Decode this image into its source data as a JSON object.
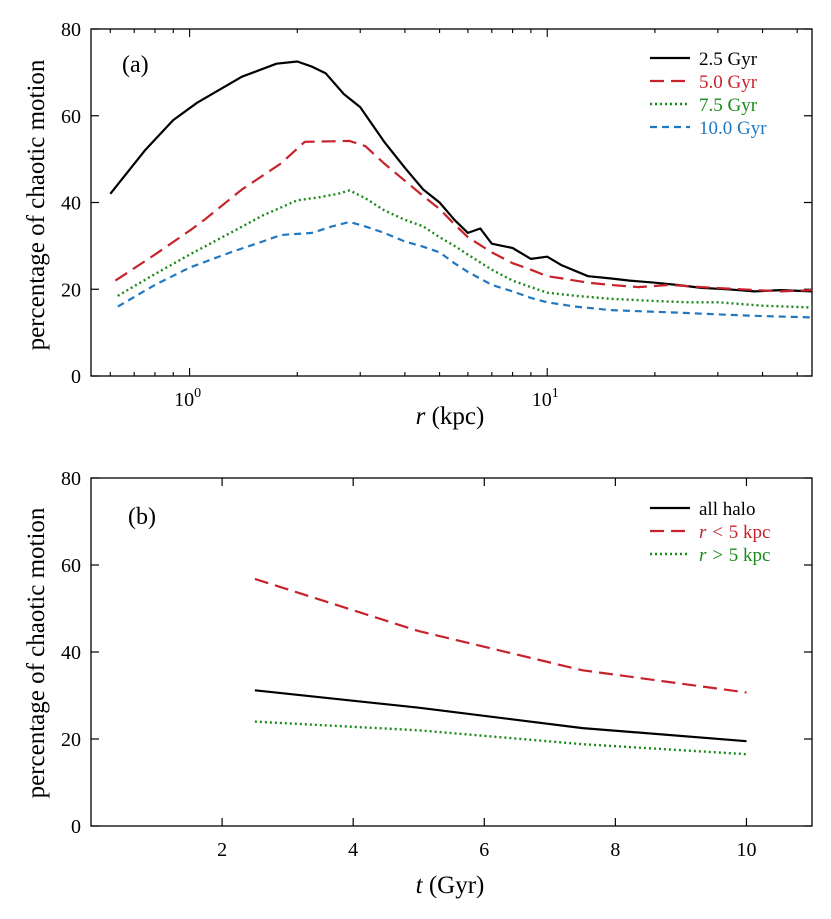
{
  "chart_data": [
    {
      "panel": "(a)",
      "type": "line",
      "x_scale": "log",
      "xlabel_var": "r",
      "xlabel_unit": "(kpc)",
      "ylabel": "percentage of chaotic motion",
      "xlim": [
        0.53,
        55
      ],
      "ylim": [
        0,
        80
      ],
      "y_ticks": [
        0,
        20,
        40,
        60,
        80
      ],
      "x_ticks": [
        {
          "value": 1,
          "base": "10",
          "exp": "0"
        },
        {
          "value": 10,
          "base": "10",
          "exp": "1"
        }
      ],
      "legend_position": "top-right",
      "series": [
        {
          "name": "2.5 Gyr",
          "color": "#000000",
          "dash": "solid",
          "points": [
            [
              0.6,
              42
            ],
            [
              0.75,
              52
            ],
            [
              0.9,
              59
            ],
            [
              1.05,
              63
            ],
            [
              1.4,
              69
            ],
            [
              1.75,
              72
            ],
            [
              2.0,
              72.5
            ],
            [
              2.2,
              71.3
            ],
            [
              2.4,
              69.8
            ],
            [
              2.7,
              65
            ],
            [
              3.0,
              62
            ],
            [
              3.5,
              54
            ],
            [
              4.0,
              48
            ],
            [
              4.5,
              43
            ],
            [
              5.0,
              40
            ],
            [
              5.5,
              36
            ],
            [
              6.0,
              33
            ],
            [
              6.5,
              34
            ],
            [
              7.0,
              30.5
            ],
            [
              7.5,
              30
            ],
            [
              8.0,
              29.5
            ],
            [
              9.0,
              27
            ],
            [
              10.0,
              27.5
            ],
            [
              11,
              25.5
            ],
            [
              13,
              23
            ],
            [
              15,
              22.5
            ],
            [
              17,
              22
            ],
            [
              20,
              21.5
            ],
            [
              23,
              21
            ],
            [
              27,
              20.3
            ],
            [
              32,
              20
            ],
            [
              38,
              19.5
            ],
            [
              45,
              19.8
            ],
            [
              55,
              19.5
            ]
          ]
        },
        {
          "name": "5.0 Gyr",
          "color": "#c8232c",
          "dash": "14,7",
          "points": [
            [
              0.62,
              22
            ],
            [
              0.8,
              28
            ],
            [
              1.0,
              33.5
            ],
            [
              1.1,
              36
            ],
            [
              1.4,
              43
            ],
            [
              1.8,
              49
            ],
            [
              2.1,
              54
            ],
            [
              2.5,
              54.1
            ],
            [
              2.8,
              54.2
            ],
            [
              3.1,
              53
            ],
            [
              3.5,
              49
            ],
            [
              4.0,
              45
            ],
            [
              4.5,
              41.5
            ],
            [
              5.0,
              38.5
            ],
            [
              5.5,
              35
            ],
            [
              6.0,
              32
            ],
            [
              7.0,
              28.5
            ],
            [
              8.0,
              26
            ],
            [
              9.0,
              24.5
            ],
            [
              10.0,
              23
            ],
            [
              11,
              22.5
            ],
            [
              13,
              21.5
            ],
            [
              15,
              21
            ],
            [
              18,
              20.5
            ],
            [
              22,
              21
            ],
            [
              27,
              20.5
            ],
            [
              35,
              20
            ],
            [
              45,
              19.5
            ],
            [
              55,
              19.8
            ]
          ]
        },
        {
          "name": "7.5 Gyr",
          "color": "#1a8a18",
          "dash": "2,3",
          "points": [
            [
              0.63,
              18.5
            ],
            [
              0.8,
              23.5
            ],
            [
              1.0,
              28
            ],
            [
              1.3,
              33
            ],
            [
              1.6,
              37
            ],
            [
              2.0,
              40.5
            ],
            [
              2.3,
              41.2
            ],
            [
              2.6,
              42
            ],
            [
              2.8,
              42.8
            ],
            [
              3.1,
              41
            ],
            [
              3.5,
              38.2
            ],
            [
              4.0,
              36
            ],
            [
              4.5,
              34.5
            ],
            [
              5.0,
              32
            ],
            [
              5.5,
              30
            ],
            [
              6.0,
              28
            ],
            [
              7.0,
              24.5
            ],
            [
              8.0,
              22
            ],
            [
              9.0,
              20.5
            ],
            [
              10.0,
              19.2
            ],
            [
              12,
              18.5
            ],
            [
              15,
              17.8
            ],
            [
              20,
              17.3
            ],
            [
              25,
              17
            ],
            [
              30,
              17
            ],
            [
              40,
              16.2
            ],
            [
              55,
              15.8
            ]
          ]
        },
        {
          "name": "10.0 Gyr",
          "color": "#1f78c1",
          "dash": "7,5",
          "points": [
            [
              0.63,
              16
            ],
            [
              0.8,
              21
            ],
            [
              1.0,
              25
            ],
            [
              1.3,
              28.5
            ],
            [
              1.6,
              31
            ],
            [
              1.8,
              32.5
            ],
            [
              2.2,
              33
            ],
            [
              2.5,
              34.5
            ],
            [
              2.8,
              35.5
            ],
            [
              3.1,
              34.5
            ],
            [
              3.5,
              33
            ],
            [
              4.0,
              31
            ],
            [
              4.5,
              29.8
            ],
            [
              5.0,
              28.5
            ],
            [
              5.5,
              26
            ],
            [
              6.0,
              24
            ],
            [
              7.0,
              21
            ],
            [
              8.0,
              19.5
            ],
            [
              9.0,
              18
            ],
            [
              10.0,
              17
            ],
            [
              12,
              16
            ],
            [
              15,
              15.2
            ],
            [
              20,
              14.8
            ],
            [
              25,
              14.5
            ],
            [
              30,
              14.2
            ],
            [
              40,
              13.8
            ],
            [
              55,
              13.5
            ]
          ]
        }
      ]
    },
    {
      "panel": "(b)",
      "type": "line",
      "x_scale": "linear",
      "xlabel_var": "t",
      "xlabel_unit": "(Gyr)",
      "ylabel": "percentage of chaotic motion",
      "xlim": [
        0,
        11
      ],
      "ylim": [
        0,
        80
      ],
      "x_ticks": [
        2,
        4,
        6,
        8,
        10
      ],
      "y_ticks": [
        0,
        20,
        40,
        60,
        80
      ],
      "legend_position": "top-right",
      "series": [
        {
          "name": "all halo",
          "var": "",
          "op": "",
          "rest": "",
          "color": "#000000",
          "dash": "solid",
          "points": [
            [
              2.5,
              31.2
            ],
            [
              5.0,
              27.2
            ],
            [
              7.5,
              22.5
            ],
            [
              10.0,
              19.5
            ]
          ]
        },
        {
          "name": "r < 5 kpc",
          "var": "r",
          "op": "<",
          "rest": "5 kpc",
          "color": "#c8232c",
          "dash": "14,7",
          "points": [
            [
              2.5,
              56.8
            ],
            [
              5.0,
              44.8
            ],
            [
              7.5,
              35.8
            ],
            [
              10.0,
              30.7
            ]
          ]
        },
        {
          "name": "r > 5 kpc",
          "var": "r",
          "op": ">",
          "rest": "5 kpc",
          "color": "#1a8a18",
          "dash": "2,3",
          "points": [
            [
              2.5,
              24
            ],
            [
              5.0,
              22
            ],
            [
              7.5,
              18.8
            ],
            [
              10.0,
              16.5
            ]
          ]
        }
      ]
    }
  ]
}
